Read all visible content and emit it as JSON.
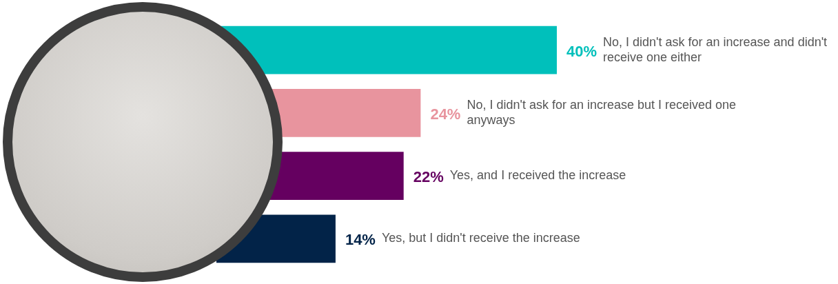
{
  "chart_data": {
    "type": "bar",
    "orientation": "horizontal",
    "categories": [
      "No, I didn't ask for an increase and didn't receive one either",
      "No, I didn't ask for an increase but I received one anyways",
      "Yes, and I received the increase",
      "Yes, but I didn't receive the increase"
    ],
    "values": [
      40,
      24,
      22,
      14
    ],
    "value_labels": [
      "40%",
      "24%",
      "22%",
      "14%"
    ],
    "colors": [
      "#00c0bb",
      "#e8949e",
      "#650060",
      "#022348"
    ],
    "xlim": [
      0,
      40
    ],
    "grid": false,
    "data_labels": true,
    "tick_labels": false
  }
}
